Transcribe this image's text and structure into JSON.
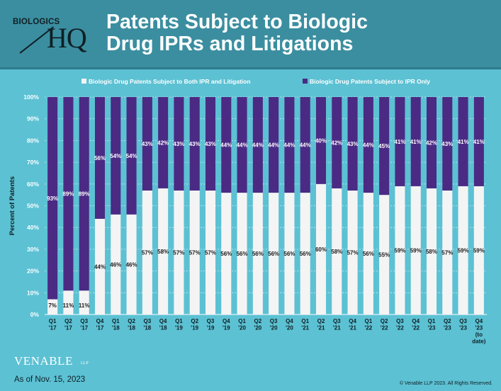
{
  "header": {
    "logo_top": "BIOLOGICS",
    "logo_main": "HQ",
    "title_line1": "Patents Subject to Biologic",
    "title_line2": "Drug IPRs and Litigations"
  },
  "footer": {
    "brand": "VENABLE",
    "brand_suffix": "LLP",
    "as_of": "As of Nov. 15, 2023",
    "copyright": "© Venable LLP 2023. All Rights Reserved."
  },
  "colors": {
    "both": "#f4f4f4",
    "ipr_only": "#4b2a84",
    "background": "#5cc1d3",
    "header": "#3b8ea0"
  },
  "chart_data": {
    "type": "bar",
    "stacked": true,
    "categories": [
      [
        "Q1",
        "'17"
      ],
      [
        "Q2",
        "'17"
      ],
      [
        "Q3",
        "'17"
      ],
      [
        "Q4",
        "'17"
      ],
      [
        "Q1",
        "'18"
      ],
      [
        "Q2",
        "'18"
      ],
      [
        "Q3",
        "'18"
      ],
      [
        "Q4",
        "'18"
      ],
      [
        "Q1",
        "'19"
      ],
      [
        "Q2",
        "'19"
      ],
      [
        "Q3",
        "'19"
      ],
      [
        "Q4",
        "'19"
      ],
      [
        "Q1",
        "'20"
      ],
      [
        "Q2",
        "'20"
      ],
      [
        "Q3",
        "'20"
      ],
      [
        "Q4",
        "'20"
      ],
      [
        "Q1",
        "'21"
      ],
      [
        "Q2",
        "'21"
      ],
      [
        "Q3",
        "'21"
      ],
      [
        "Q4",
        "'21"
      ],
      [
        "Q1",
        "'22"
      ],
      [
        "Q2",
        "'22"
      ],
      [
        "Q3",
        "'22"
      ],
      [
        "Q4",
        "'22"
      ],
      [
        "Q1",
        "'23"
      ],
      [
        "Q2",
        "'23"
      ],
      [
        "Q3",
        "'23"
      ],
      [
        "Q4",
        "'23",
        "(to",
        "date)"
      ]
    ],
    "series": [
      {
        "name": "Biologic Drug Patents Subject to Both IPR and Litigation",
        "color": "#f4f4f4",
        "values": [
          7,
          11,
          11,
          44,
          46,
          46,
          57,
          58,
          57,
          57,
          57,
          56,
          56,
          56,
          56,
          56,
          56,
          60,
          58,
          57,
          56,
          55,
          59,
          59,
          58,
          57,
          59,
          59
        ]
      },
      {
        "name": "Biologic Drug Patents Subject to IPR Only",
        "color": "#4b2a84",
        "values": [
          93,
          89,
          89,
          56,
          54,
          54,
          43,
          42,
          43,
          43,
          43,
          44,
          44,
          44,
          44,
          44,
          44,
          40,
          42,
          43,
          44,
          45,
          41,
          41,
          42,
          43,
          41,
          41
        ]
      }
    ],
    "ylabel": "Percent of Patents",
    "ylim": [
      0,
      100
    ],
    "yticks": [
      "0%",
      "10%",
      "20%",
      "30%",
      "40%",
      "50%",
      "60%",
      "70%",
      "80%",
      "90%",
      "100%"
    ],
    "grid": true,
    "legend_position": "top"
  }
}
